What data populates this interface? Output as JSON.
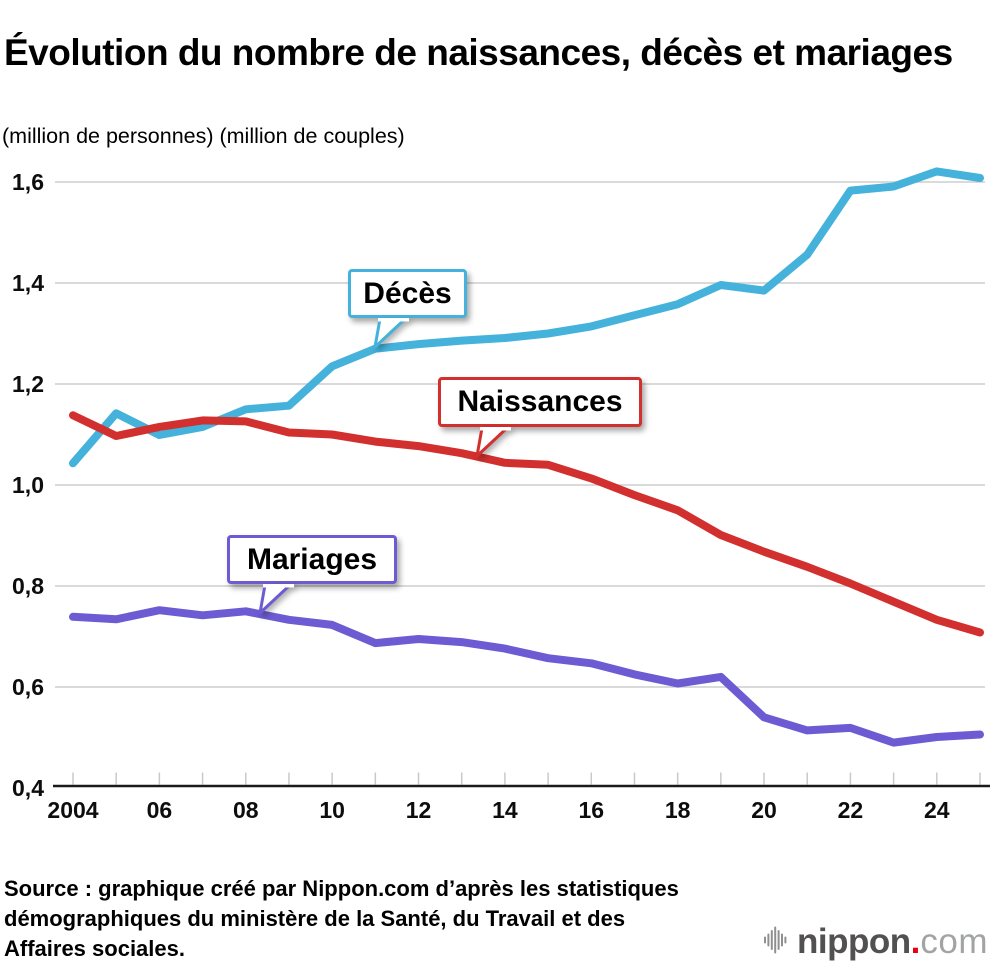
{
  "header": {
    "title": "Évolution du nombre de naissances, décès et mariages",
    "units_note": "(million de personnes) (million de couples)"
  },
  "chart_data": {
    "type": "line",
    "x": [
      2004,
      2005,
      2006,
      2007,
      2008,
      2009,
      2010,
      2011,
      2012,
      2013,
      2014,
      2015,
      2016,
      2017,
      2018,
      2019,
      2020,
      2021,
      2022,
      2023,
      2024,
      2025
    ],
    "series": [
      {
        "name": "Décès",
        "color": "#45b2db",
        "values": [
          1.043,
          1.142,
          1.099,
          1.115,
          1.15,
          1.157,
          1.235,
          1.27,
          1.279,
          1.286,
          1.291,
          1.3,
          1.314,
          1.336,
          1.358,
          1.396,
          1.385,
          1.456,
          1.583,
          1.591,
          1.621,
          1.608
        ]
      },
      {
        "name": "Naissances",
        "color": "#d2302e",
        "values": [
          1.138,
          1.097,
          1.115,
          1.128,
          1.126,
          1.104,
          1.1,
          1.086,
          1.077,
          1.063,
          1.044,
          1.04,
          1.013,
          0.98,
          0.95,
          0.901,
          0.868,
          0.838,
          0.805,
          0.769,
          0.733,
          0.708
        ]
      },
      {
        "name": "Mariages",
        "color": "#6c5bd2",
        "values": [
          0.739,
          0.734,
          0.752,
          0.742,
          0.75,
          0.733,
          0.723,
          0.687,
          0.695,
          0.689,
          0.676,
          0.657,
          0.647,
          0.625,
          0.607,
          0.62,
          0.54,
          0.514,
          0.519,
          0.49,
          0.501,
          0.506
        ]
      }
    ],
    "ylim": [
      0.4,
      1.6
    ],
    "ytick_values": [
      1.6,
      1.4,
      1.2,
      1.0,
      0.8,
      0.6,
      0.4
    ],
    "ytick_labels": [
      "1,6",
      "1,4",
      "1,2",
      "1,0",
      "0,8",
      "0,6",
      "0,4"
    ],
    "xtick_years": [
      2004,
      2006,
      2008,
      2010,
      2012,
      2014,
      2016,
      2018,
      2020,
      2022,
      2024
    ],
    "xtick_labels": [
      "2004",
      "06",
      "08",
      "10",
      "12",
      "14",
      "16",
      "18",
      "20",
      "22",
      "24"
    ],
    "grid": true,
    "legend_position": "callout-labels-on-chart",
    "axis_color": "#1a1a1a",
    "grid_color": "#cdcdcd",
    "tick_color": "#c9c9c9"
  },
  "footer": {
    "source_line1": "Source : graphique créé par Nippon.com d’après les statistiques",
    "source_line2": "démographiques du ministère de la Santé, du Travail et des",
    "source_line3": "Affaires sociales.",
    "logo_word": "nippon",
    "logo_dot": ".",
    "logo_tld": "com"
  }
}
